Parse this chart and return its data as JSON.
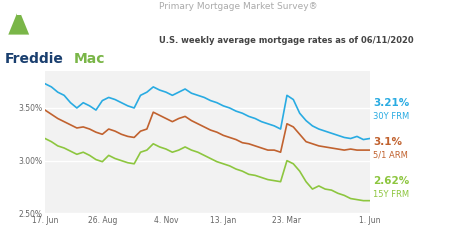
{
  "title1": "Primary Mortgage Market Survey®",
  "title2": "U.S. weekly average mortgage rates as of 06/11/2020",
  "bg_color": "#ffffff",
  "plot_bg_color": "#f2f2f2",
  "line_30y_color": "#29abe2",
  "line_15y_color": "#8dc63f",
  "line_arm_color": "#c1622f",
  "label_30y": "3.21%",
  "label_30y_sub": "30Y FRM",
  "label_15y": "2.62%",
  "label_15y_sub": "15Y FRM",
  "label_arm": "3.1%",
  "label_arm_sub": "5/1 ARM",
  "freddie_blue": "#1a3f6f",
  "freddie_green": "#7ab648",
  "title1_color": "#aaaaaa",
  "title2_color": "#444444",
  "ylim": [
    2.5,
    3.85
  ],
  "yticks": [
    2.5,
    3.0,
    3.5
  ],
  "xtick_labels": [
    "17. Jun",
    "26. Aug",
    "4. Nov",
    "13. Jan",
    "23. Mar",
    "1. Jun"
  ],
  "xtick_positions": [
    0,
    9,
    19,
    28,
    38,
    51
  ],
  "n_points": 52,
  "rate_30y": [
    3.73,
    3.7,
    3.65,
    3.62,
    3.55,
    3.5,
    3.55,
    3.52,
    3.48,
    3.57,
    3.6,
    3.58,
    3.55,
    3.52,
    3.5,
    3.62,
    3.65,
    3.7,
    3.67,
    3.65,
    3.62,
    3.65,
    3.68,
    3.64,
    3.62,
    3.6,
    3.57,
    3.55,
    3.52,
    3.5,
    3.47,
    3.45,
    3.42,
    3.4,
    3.37,
    3.35,
    3.33,
    3.3,
    3.62,
    3.58,
    3.45,
    3.38,
    3.33,
    3.3,
    3.28,
    3.26,
    3.24,
    3.22,
    3.21,
    3.23,
    3.2,
    3.21
  ],
  "rate_arm": [
    3.48,
    3.44,
    3.4,
    3.37,
    3.34,
    3.31,
    3.32,
    3.3,
    3.27,
    3.25,
    3.3,
    3.28,
    3.25,
    3.23,
    3.22,
    3.28,
    3.3,
    3.46,
    3.43,
    3.4,
    3.37,
    3.4,
    3.42,
    3.38,
    3.35,
    3.32,
    3.29,
    3.27,
    3.24,
    3.22,
    3.2,
    3.17,
    3.16,
    3.14,
    3.12,
    3.1,
    3.1,
    3.08,
    3.35,
    3.32,
    3.25,
    3.18,
    3.16,
    3.14,
    3.13,
    3.12,
    3.11,
    3.1,
    3.11,
    3.1,
    3.1,
    3.1
  ],
  "rate_15y": [
    3.21,
    3.18,
    3.14,
    3.12,
    3.09,
    3.06,
    3.08,
    3.05,
    3.01,
    2.99,
    3.05,
    3.02,
    3.0,
    2.98,
    2.97,
    3.08,
    3.1,
    3.16,
    3.13,
    3.11,
    3.08,
    3.1,
    3.13,
    3.1,
    3.08,
    3.05,
    3.02,
    2.99,
    2.97,
    2.95,
    2.92,
    2.9,
    2.87,
    2.86,
    2.84,
    2.82,
    2.81,
    2.8,
    3.0,
    2.97,
    2.9,
    2.8,
    2.73,
    2.76,
    2.73,
    2.72,
    2.69,
    2.67,
    2.64,
    2.63,
    2.62,
    2.62
  ]
}
